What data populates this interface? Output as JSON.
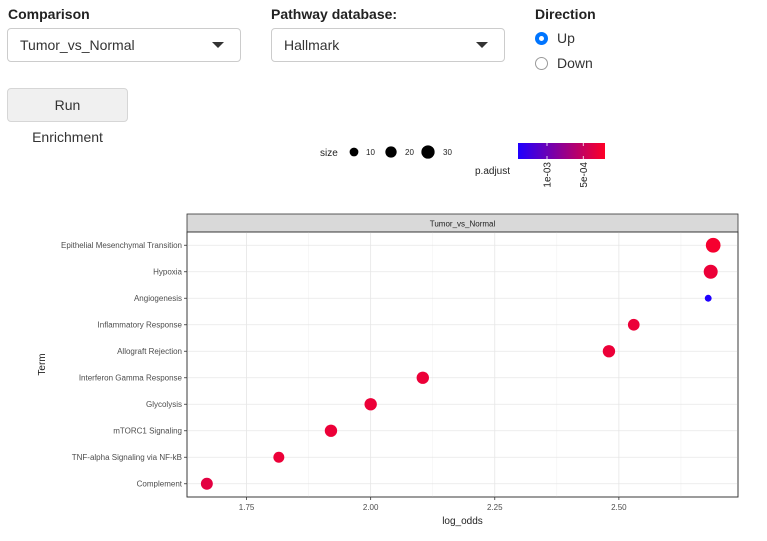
{
  "controls": {
    "comparison": {
      "label": "Comparison",
      "selected": "Tumor_vs_Normal"
    },
    "pathway_db": {
      "label": "Pathway database:",
      "selected": "Hallmark"
    },
    "direction": {
      "label": "Direction",
      "options": [
        {
          "label": "Up",
          "checked": true
        },
        {
          "label": "Down",
          "checked": false
        }
      ]
    },
    "run_button": {
      "label": "Run Enrichment"
    }
  },
  "chart_data": {
    "type": "scatter",
    "facet_label": "Tumor_vs_Normal",
    "xlabel": "log_odds",
    "ylabel": "Term",
    "xlim": [
      1.63,
      2.74
    ],
    "x_ticks": [
      {
        "value": 1.75,
        "label": "1.75"
      },
      {
        "value": 2.0,
        "label": "2.00"
      },
      {
        "value": 2.25,
        "label": "2.25"
      },
      {
        "value": 2.5,
        "label": "2.50"
      }
    ],
    "grid": true,
    "points": [
      {
        "term": "Epithelial Mesenchymal Transition",
        "x": 2.69,
        "size": 34,
        "p_adjust": 0.00025
      },
      {
        "term": "Hypoxia",
        "x": 2.685,
        "size": 30,
        "p_adjust": 0.0003
      },
      {
        "term": "Angiogenesis",
        "x": 2.68,
        "size": 4,
        "p_adjust": 0.0014
      },
      {
        "term": "Inflammatory Response",
        "x": 2.53,
        "size": 19,
        "p_adjust": 0.0003
      },
      {
        "term": "Allograft Rejection",
        "x": 2.48,
        "size": 22,
        "p_adjust": 0.0003
      },
      {
        "term": "Interferon Gamma Response",
        "x": 2.105,
        "size": 22,
        "p_adjust": 0.0003
      },
      {
        "term": "Glycolysis",
        "x": 2.0,
        "size": 22,
        "p_adjust": 0.0003
      },
      {
        "term": "mTORC1 Signaling",
        "x": 1.92,
        "size": 22,
        "p_adjust": 0.0003
      },
      {
        "term": "TNF-alpha Signaling via NF-kB",
        "x": 1.815,
        "size": 16,
        "p_adjust": 0.0003
      },
      {
        "term": "Complement",
        "x": 1.67,
        "size": 20,
        "p_adjust": 0.00035
      }
    ],
    "legend_size": {
      "title": "size",
      "entries": [
        {
          "value": 10,
          "label": "10"
        },
        {
          "value": 20,
          "label": "20"
        },
        {
          "value": 30,
          "label": "30"
        }
      ]
    },
    "legend_color": {
      "title": "p.adjust",
      "low_color": "#ff0026",
      "high_color": "#1f00ff",
      "range": [
        0.0002,
        0.0014
      ],
      "ticks": [
        {
          "value": 0.001,
          "label": "1e-03"
        },
        {
          "value": 0.0005,
          "label": "5e-04"
        }
      ]
    }
  }
}
